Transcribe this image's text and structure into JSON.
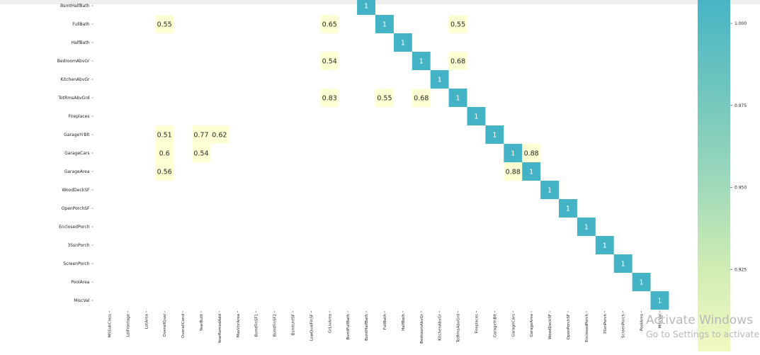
{
  "chart_data": {
    "type": "heatmap",
    "title": "",
    "xlabel": "",
    "ylabel": "",
    "row_labels": [
      "BsmtHalfBath",
      "FullBath",
      "HalfBath",
      "BedroomAbvGr",
      "KitchenAbvGr",
      "TotRmsAbvGrd",
      "Fireplaces",
      "GarageYrBlt",
      "GarageCars",
      "GarageArea",
      "WoodDeckSF",
      "OpenPorchSF",
      "EnclosedPorch",
      "3SsnPorch",
      "ScreenPorch",
      "PoolArea",
      "MiscVal"
    ],
    "col_labels": [
      "MSSubClass",
      "LotFrontage",
      "LotArea",
      "OverallQual",
      "OverallCond",
      "YearBuilt",
      "YearRemodAdd",
      "MasVnrArea",
      "BsmtFinSF1",
      "BsmtFinSF2",
      "BsmtUnfSF",
      "LowQualFinSF",
      "GrLivArea",
      "BsmtFullBath",
      "BsmtHalfBath",
      "FullBath",
      "HalfBath",
      "BedroomAbvGr",
      "KitchenAbvGr",
      "TotRmsAbvGrd",
      "Fireplaces",
      "GarageYrBlt",
      "GarageCars",
      "GarageArea",
      "WoodDeckSF",
      "OpenPorchSF",
      "EnclosedPorch",
      "3SsnPorch",
      "ScreenPorch",
      "PoolArea",
      "MiscVal"
    ],
    "cells": [
      {
        "row": "BsmtHalfBath",
        "col": "BsmtHalfBath",
        "value": 1,
        "label": "1"
      },
      {
        "row": "FullBath",
        "col": "OverallQual",
        "value": 0.55,
        "label": "0.55"
      },
      {
        "row": "FullBath",
        "col": "GrLivArea",
        "value": 0.65,
        "label": "0.65"
      },
      {
        "row": "FullBath",
        "col": "FullBath",
        "value": 1,
        "label": "1"
      },
      {
        "row": "FullBath",
        "col": "TotRmsAbvGrd",
        "value": 0.55,
        "label": "0.55"
      },
      {
        "row": "HalfBath",
        "col": "HalfBath",
        "value": 1,
        "label": "1"
      },
      {
        "row": "BedroomAbvGr",
        "col": "GrLivArea",
        "value": 0.54,
        "label": "0.54"
      },
      {
        "row": "BedroomAbvGr",
        "col": "BedroomAbvGr",
        "value": 1,
        "label": "1"
      },
      {
        "row": "BedroomAbvGr",
        "col": "TotRmsAbvGrd",
        "value": 0.68,
        "label": "0.68"
      },
      {
        "row": "KitchenAbvGr",
        "col": "KitchenAbvGr",
        "value": 1,
        "label": "1"
      },
      {
        "row": "TotRmsAbvGrd",
        "col": "GrLivArea",
        "value": 0.83,
        "label": "0.83"
      },
      {
        "row": "TotRmsAbvGrd",
        "col": "FullBath",
        "value": 0.55,
        "label": "0.55"
      },
      {
        "row": "TotRmsAbvGrd",
        "col": "BedroomAbvGr",
        "value": 0.68,
        "label": "0.68"
      },
      {
        "row": "TotRmsAbvGrd",
        "col": "TotRmsAbvGrd",
        "value": 1,
        "label": "1"
      },
      {
        "row": "Fireplaces",
        "col": "Fireplaces",
        "value": 1,
        "label": "1"
      },
      {
        "row": "GarageYrBlt",
        "col": "OverallQual",
        "value": 0.51,
        "label": "0.51"
      },
      {
        "row": "GarageYrBlt",
        "col": "YearBuilt",
        "value": 0.77,
        "label": "0.77"
      },
      {
        "row": "GarageYrBlt",
        "col": "YearRemodAdd",
        "value": 0.62,
        "label": "0.62"
      },
      {
        "row": "GarageYrBlt",
        "col": "GarageYrBlt",
        "value": 1,
        "label": "1"
      },
      {
        "row": "GarageCars",
        "col": "OverallQual",
        "value": 0.6,
        "label": "0.6"
      },
      {
        "row": "GarageCars",
        "col": "YearBuilt",
        "value": 0.54,
        "label": "0.54"
      },
      {
        "row": "GarageCars",
        "col": "GarageCars",
        "value": 1,
        "label": "1"
      },
      {
        "row": "GarageCars",
        "col": "GarageArea",
        "value": 0.88,
        "label": "0.88"
      },
      {
        "row": "GarageArea",
        "col": "OverallQual",
        "value": 0.56,
        "label": "0.56"
      },
      {
        "row": "GarageArea",
        "col": "GarageCars",
        "value": 0.88,
        "label": "0.88"
      },
      {
        "row": "GarageArea",
        "col": "GarageArea",
        "value": 1,
        "label": "1"
      },
      {
        "row": "WoodDeckSF",
        "col": "WoodDeckSF",
        "value": 1,
        "label": "1"
      },
      {
        "row": "OpenPorchSF",
        "col": "OpenPorchSF",
        "value": 1,
        "label": "1"
      },
      {
        "row": "EnclosedPorch",
        "col": "EnclosedPorch",
        "value": 1,
        "label": "1"
      },
      {
        "row": "3SsnPorch",
        "col": "3SsnPorch",
        "value": 1,
        "label": "1"
      },
      {
        "row": "ScreenPorch",
        "col": "ScreenPorch",
        "value": 1,
        "label": "1"
      },
      {
        "row": "PoolArea",
        "col": "PoolArea",
        "value": 1,
        "label": "1"
      },
      {
        "row": "MiscVal",
        "col": "MiscVal",
        "value": 1,
        "label": "1"
      }
    ],
    "colorbar": {
      "colors": [
        "#f2f9c2",
        "#cdebb4",
        "#98d6bb",
        "#6cc4be",
        "#44b3c6"
      ],
      "ticks": [
        0.925,
        0.95,
        0.975,
        1.0
      ],
      "tick_labels": [
        "0.925",
        "0.950",
        "0.975",
        "1.000"
      ],
      "range": [
        0.9,
        1.0
      ]
    },
    "diag_color": "#44b3c6",
    "offdiag_color": "#ffffd4"
  },
  "watermark": {
    "line1": "Activate Windows",
    "line2": "Go to Settings to activate Windows."
  }
}
